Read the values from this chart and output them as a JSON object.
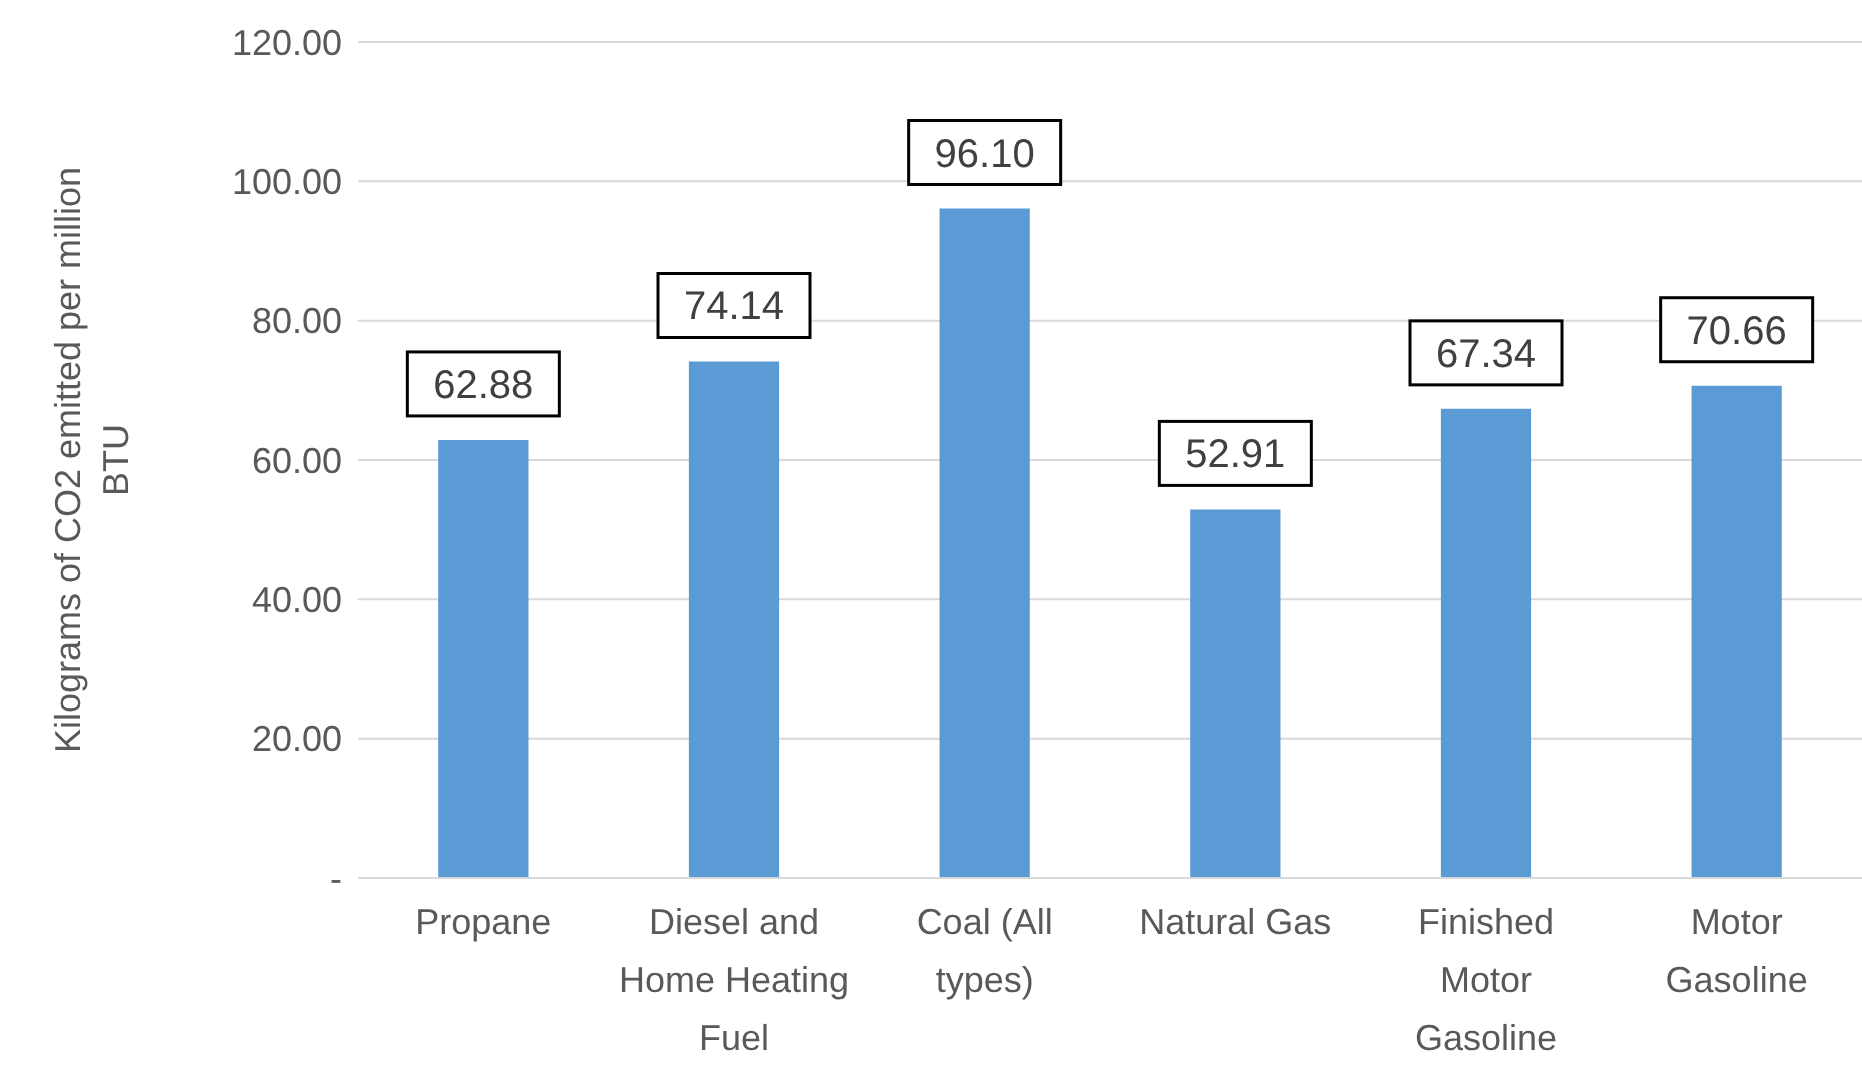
{
  "chart_data": {
    "type": "bar",
    "ylabel": "Kilograms of CO2 emitted per million BTU",
    "categories": [
      "Propane",
      "Diesel and Home Heating Fuel",
      "Coal (All types)",
      "Natural Gas",
      "Finished Motor Gasoline",
      "Motor Gasoline"
    ],
    "values": [
      62.88,
      74.14,
      96.1,
      52.91,
      67.34,
      70.66
    ],
    "value_labels": [
      "62.88",
      "74.14",
      "96.10",
      "52.91",
      "67.34",
      "70.66"
    ],
    "color": "#5b9bd5",
    "ylim": [
      0,
      120
    ],
    "yticks": [
      {
        "value": 0,
        "label": "-"
      },
      {
        "value": 20,
        "label": "20.00"
      },
      {
        "value": 40,
        "label": "40.00"
      },
      {
        "value": 60,
        "label": "60.00"
      },
      {
        "value": 80,
        "label": "80.00"
      },
      {
        "value": 100,
        "label": "100.00"
      },
      {
        "value": 120,
        "label": "120.00"
      }
    ],
    "grid": "y"
  }
}
